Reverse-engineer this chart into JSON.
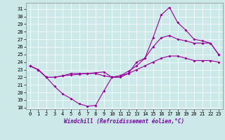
{
  "title": "",
  "xlabel": "Windchill (Refroidissement éolien,°C)",
  "bg_color": "#cce8e8",
  "line_color": "#990099",
  "xlim": [
    -0.5,
    23.5
  ],
  "ylim": [
    17.8,
    31.8
  ],
  "xticks": [
    0,
    1,
    2,
    3,
    4,
    5,
    6,
    7,
    8,
    9,
    10,
    11,
    12,
    13,
    14,
    15,
    16,
    17,
    18,
    19,
    20,
    21,
    22,
    23
  ],
  "yticks": [
    18,
    19,
    20,
    21,
    22,
    23,
    24,
    25,
    26,
    27,
    28,
    29,
    30,
    31
  ],
  "line1_x": [
    0,
    1,
    2,
    3,
    4,
    5,
    6,
    7,
    8,
    9,
    10,
    11,
    12,
    13,
    14,
    15,
    16,
    17,
    18,
    19,
    20,
    21,
    22,
    23
  ],
  "line1_y": [
    23.5,
    23.0,
    22.0,
    20.8,
    19.8,
    19.2,
    18.5,
    18.2,
    18.3,
    20.2,
    22.0,
    22.0,
    22.5,
    24.0,
    24.5,
    27.2,
    30.2,
    31.2,
    29.2,
    28.2,
    27.0,
    26.8,
    26.5,
    25.0
  ],
  "line2_x": [
    0,
    1,
    2,
    3,
    4,
    5,
    6,
    7,
    8,
    9,
    10,
    11,
    12,
    13,
    14,
    15,
    16,
    17,
    18,
    19,
    20,
    21,
    22,
    23
  ],
  "line2_y": [
    23.5,
    23.0,
    22.0,
    22.0,
    22.2,
    22.5,
    22.5,
    22.5,
    22.5,
    22.2,
    22.0,
    22.2,
    22.8,
    23.5,
    24.5,
    26.0,
    27.2,
    27.5,
    27.0,
    26.8,
    26.5,
    26.5,
    26.5,
    25.0
  ],
  "line3_x": [
    0,
    1,
    2,
    3,
    4,
    5,
    6,
    7,
    8,
    9,
    10,
    11,
    12,
    13,
    14,
    15,
    16,
    17,
    18,
    19,
    20,
    21,
    22,
    23
  ],
  "line3_y": [
    23.5,
    23.0,
    22.0,
    22.0,
    22.2,
    22.3,
    22.4,
    22.5,
    22.6,
    22.7,
    22.0,
    22.2,
    22.5,
    23.0,
    23.5,
    24.0,
    24.5,
    24.8,
    24.8,
    24.5,
    24.2,
    24.2,
    24.2,
    24.0
  ]
}
